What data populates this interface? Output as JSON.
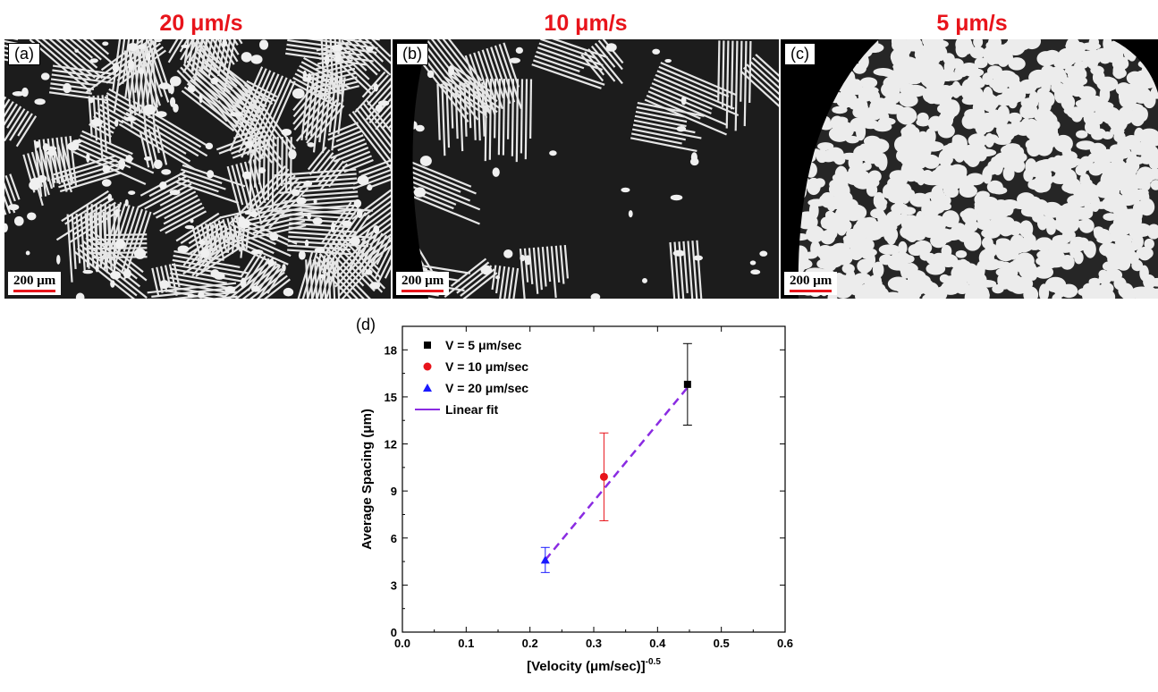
{
  "panels": [
    {
      "title": "20 μm/s",
      "label": "(a)",
      "scale_text": "200 μm",
      "style": "lamellar"
    },
    {
      "title": "10 μm/s",
      "label": "(b)",
      "scale_text": "200 μm",
      "style": "mixed"
    },
    {
      "title": "5 μm/s",
      "label": "(c)",
      "scale_text": "200 μm",
      "style": "grains"
    }
  ],
  "chart_label": "(d)",
  "chart_data": {
    "type": "scatter",
    "xlabel": "[Velocity (μm/sec)]",
    "xlabel_sup": "-0.5",
    "ylabel": "Average Spacing (μm)",
    "xlim": [
      0.0,
      0.6
    ],
    "ylim": [
      0,
      19.5
    ],
    "x_ticks": [
      "0.0",
      "0.1",
      "0.2",
      "0.3",
      "0.4",
      "0.5",
      "0.6"
    ],
    "y_ticks": [
      "0",
      "3",
      "6",
      "9",
      "12",
      "15",
      "18"
    ],
    "grid": false,
    "legend_position": "top-left",
    "series": [
      {
        "name": "V =   5 μm/sec",
        "marker": "square",
        "color": "#000000",
        "x": 0.447,
        "y": 15.8,
        "err": 2.6
      },
      {
        "name": "V = 10 μm/sec",
        "marker": "circle",
        "color": "#e8141b",
        "x": 0.316,
        "y": 9.9,
        "err": 2.8
      },
      {
        "name": "V = 20 μm/sec",
        "marker": "triangle",
        "color": "#1a1aff",
        "x": 0.224,
        "y": 4.6,
        "err": 0.8
      }
    ],
    "fit": {
      "name": "Linear fit",
      "color": "#8a2be2",
      "x": [
        0.224,
        0.447
      ],
      "y": [
        4.6,
        15.6
      ]
    }
  }
}
